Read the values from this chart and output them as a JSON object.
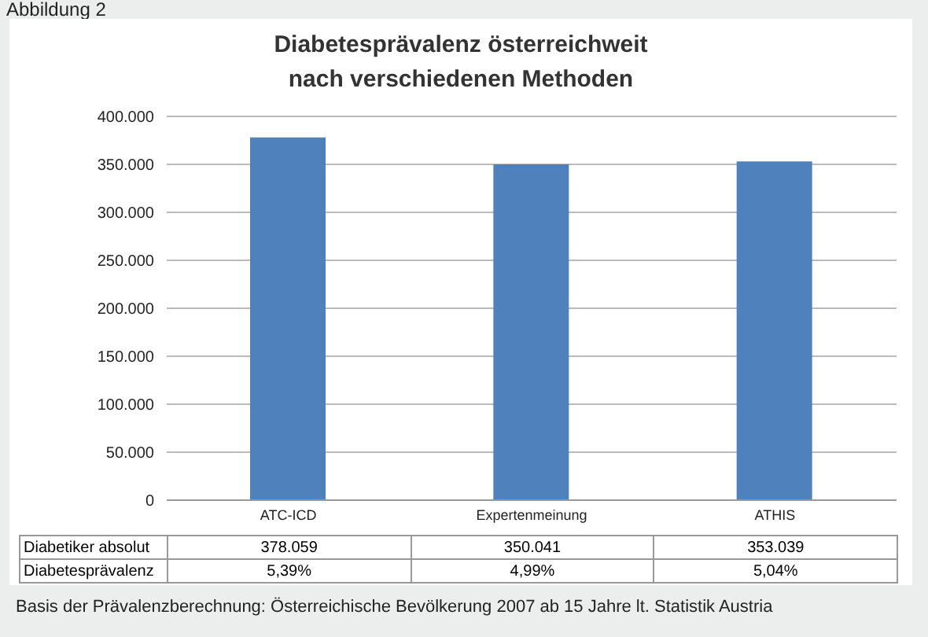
{
  "chart_data": {
    "type": "bar",
    "title": "Diabetesprävalenz österreichweit\nnach verschiedenen Methoden",
    "subtitle": "Abbildung 2",
    "categories": [
      "ATC-ICD",
      "Expertenmeinung",
      "ATHIS"
    ],
    "series": [
      {
        "name": "Diabetiker absolut",
        "color": "#4f81bd",
        "values": [
          378059,
          350041,
          353039
        ],
        "value_labels": [
          "378.059",
          "350.041",
          "353.039"
        ]
      }
    ],
    "ylim": [
      0,
      400000
    ],
    "yticks": [
      {
        "value": 0,
        "label": "0"
      },
      {
        "value": 50000,
        "label": "50.000"
      },
      {
        "value": 100000,
        "label": "100.000"
      },
      {
        "value": 150000,
        "label": "150.000"
      },
      {
        "value": 200000,
        "label": "200.000"
      },
      {
        "value": 250000,
        "label": "250.000"
      },
      {
        "value": 300000,
        "label": "300.000"
      },
      {
        "value": 350000,
        "label": "350.000"
      },
      {
        "value": 400000,
        "label": "400.000"
      }
    ],
    "grid": "y",
    "legend": false,
    "annotations": [
      "Diabetesprävalenz",
      "5,39%",
      "4,99%",
      "5,04%",
      "Basis der Prävalenzberechnung: Österreichische Bevölkerung 2007 ab 15 Jahre lt. Statistik Austria"
    ]
  }
}
